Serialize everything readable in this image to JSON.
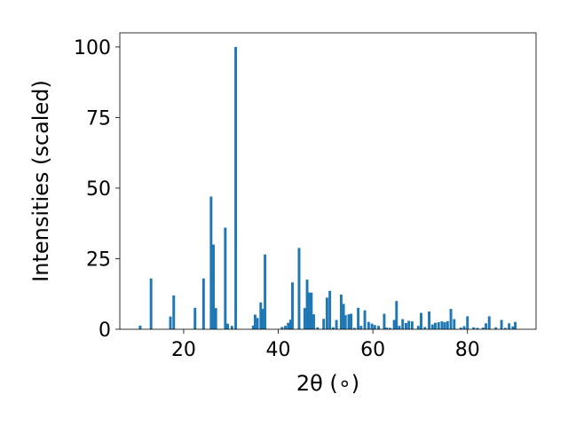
{
  "chart_data": {
    "type": "bar",
    "title": "",
    "xlabel": "2θ (∘)",
    "ylabel": "Intensities (scaled)",
    "xlim": [
      6.5,
      94.5
    ],
    "ylim": [
      0,
      105
    ],
    "xticks": [
      20,
      40,
      60,
      80
    ],
    "yticks": [
      0,
      25,
      50,
      75,
      100
    ],
    "grid": false,
    "bar_color": "#1f77b4",
    "bar_width": 0.55,
    "x": [
      10.8,
      13.1,
      17.2,
      17.9,
      22.4,
      24.2,
      25.8,
      26.3,
      26.8,
      28.8,
      29.3,
      30.2,
      31.0,
      34.7,
      35.1,
      35.6,
      36.3,
      36.7,
      37.2,
      40.8,
      41.5,
      42.1,
      42.6,
      43.0,
      44.4,
      45.6,
      46.1,
      46.5,
      47.0,
      47.5,
      48.3,
      49.6,
      50.3,
      50.9,
      51.6,
      52.3,
      53.3,
      53.8,
      54.2,
      54.9,
      55.4,
      56.1,
      56.9,
      57.5,
      58.3,
      59.1,
      59.8,
      60.4,
      61.2,
      62.4,
      62.9,
      63.6,
      64.5,
      65.0,
      65.6,
      66.3,
      67.0,
      67.6,
      68.3,
      69.6,
      70.2,
      71.0,
      71.9,
      72.6,
      73.2,
      73.9,
      74.6,
      75.2,
      75.8,
      76.5,
      77.2,
      78.6,
      79.3,
      80.0,
      81.3,
      82.1,
      83.3,
      83.9,
      84.6,
      86.0,
      87.2,
      88.0,
      88.8,
      89.6,
      90.1
    ],
    "values": [
      1.3,
      18,
      4.5,
      12,
      7.6,
      18,
      47,
      30,
      7.5,
      36,
      2,
      1.2,
      100,
      1.3,
      5.2,
      4,
      9.5,
      7.2,
      26.5,
      0.8,
      1.2,
      2.3,
      3.4,
      16.6,
      28.8,
      7.5,
      17.6,
      13,
      13,
      5.3,
      0.7,
      3.7,
      11.2,
      13.6,
      0.7,
      3.3,
      12.3,
      9,
      5,
      5.3,
      5.5,
      0.5,
      7.6,
      1.2,
      6.7,
      2.6,
      2,
      1.5,
      1.2,
      5.5,
      0.6,
      0.5,
      3.3,
      10,
      1.2,
      3.6,
      2.2,
      3,
      2.8,
      1.2,
      5.8,
      0.8,
      6.3,
      1.7,
      2.3,
      2.5,
      2.8,
      2.5,
      2.9,
      7.2,
      3.6,
      0.6,
      1.1,
      4.6,
      0.7,
      0.5,
      0.6,
      2.1,
      4.6,
      0.7,
      3.3,
      0.5,
      2.1,
      1,
      2.6
    ]
  }
}
